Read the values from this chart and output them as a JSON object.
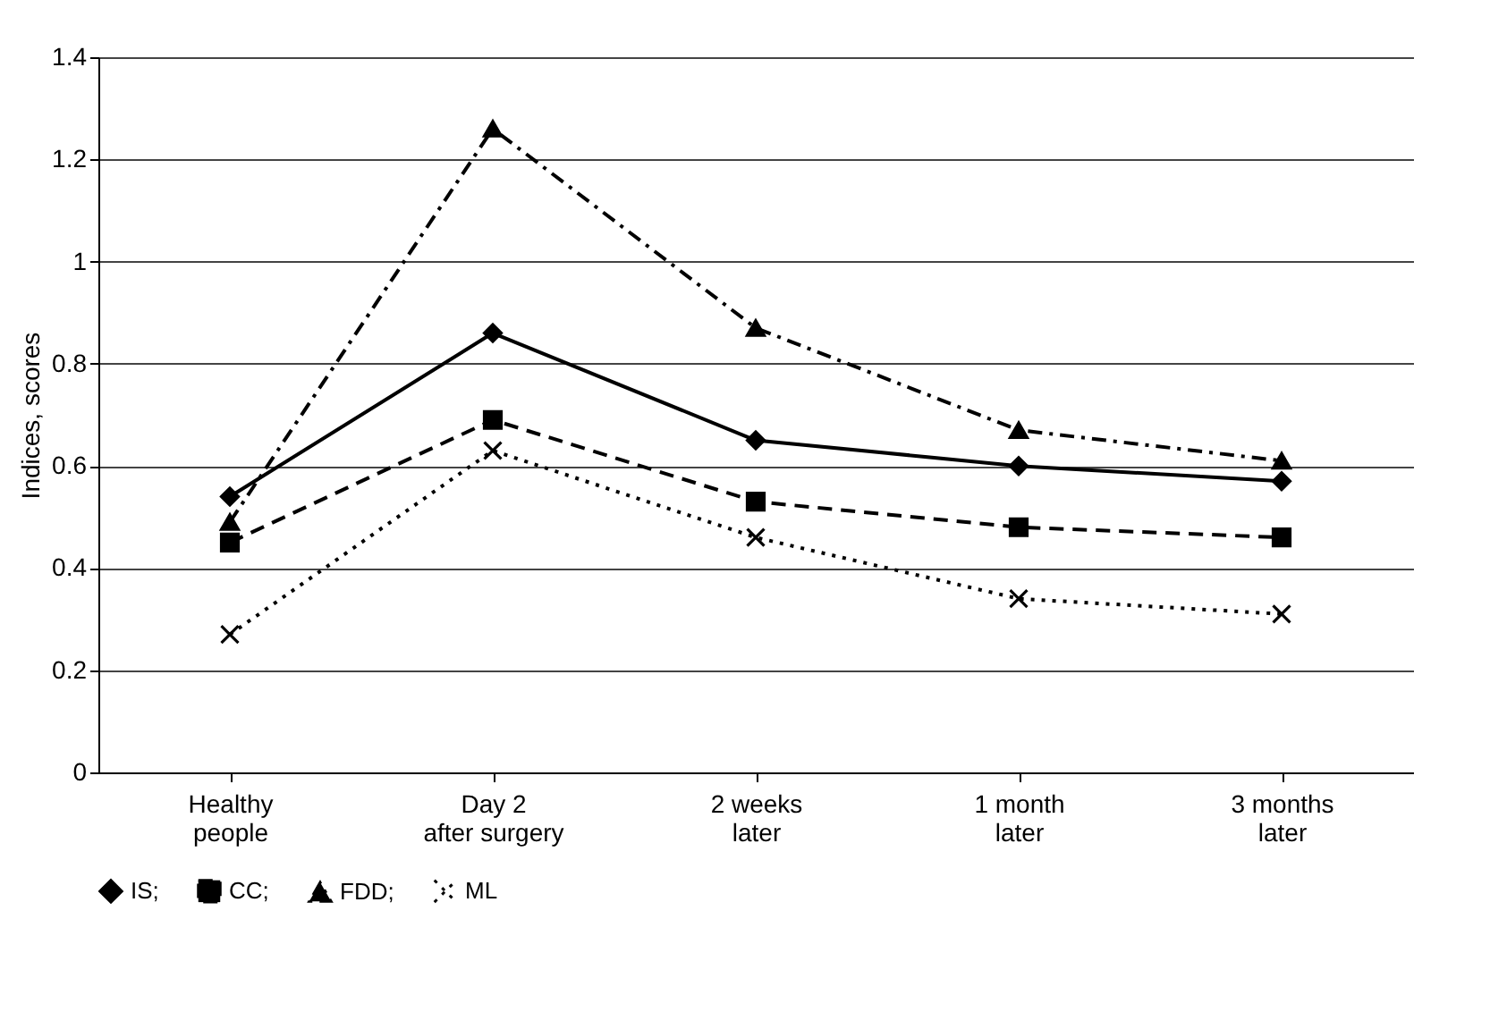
{
  "chart_data": {
    "type": "line",
    "ylabel": "Indices, scores",
    "categories": [
      "Healthy\npeople",
      "Day 2\nafter surgery",
      "2 weeks\nlater",
      "1 month\nlater",
      "3 months\nlater"
    ],
    "series": [
      {
        "name": "IS;",
        "color": "#000000",
        "marker": "diamond",
        "line_style": "solid",
        "values": [
          0.54,
          0.86,
          0.65,
          0.6,
          0.57
        ]
      },
      {
        "name": "CC;",
        "color": "#000000",
        "marker": "square",
        "line_style": "dashed",
        "values": [
          0.45,
          0.69,
          0.53,
          0.48,
          0.46
        ]
      },
      {
        "name": "FDD;",
        "color": "#000000",
        "marker": "triangle",
        "line_style": "dashdot",
        "values": [
          0.49,
          1.26,
          0.87,
          0.67,
          0.61
        ]
      },
      {
        "name": "ML",
        "color": "#000000",
        "marker": "cross",
        "line_style": "dotted",
        "values": [
          0.27,
          0.63,
          0.46,
          0.34,
          0.31
        ]
      }
    ],
    "ylim": [
      0,
      1.4
    ],
    "yticks": [
      0,
      0.2,
      0.4,
      0.6,
      0.8,
      1,
      1.2,
      1.4
    ],
    "grid": "y",
    "legend": "bottom"
  }
}
